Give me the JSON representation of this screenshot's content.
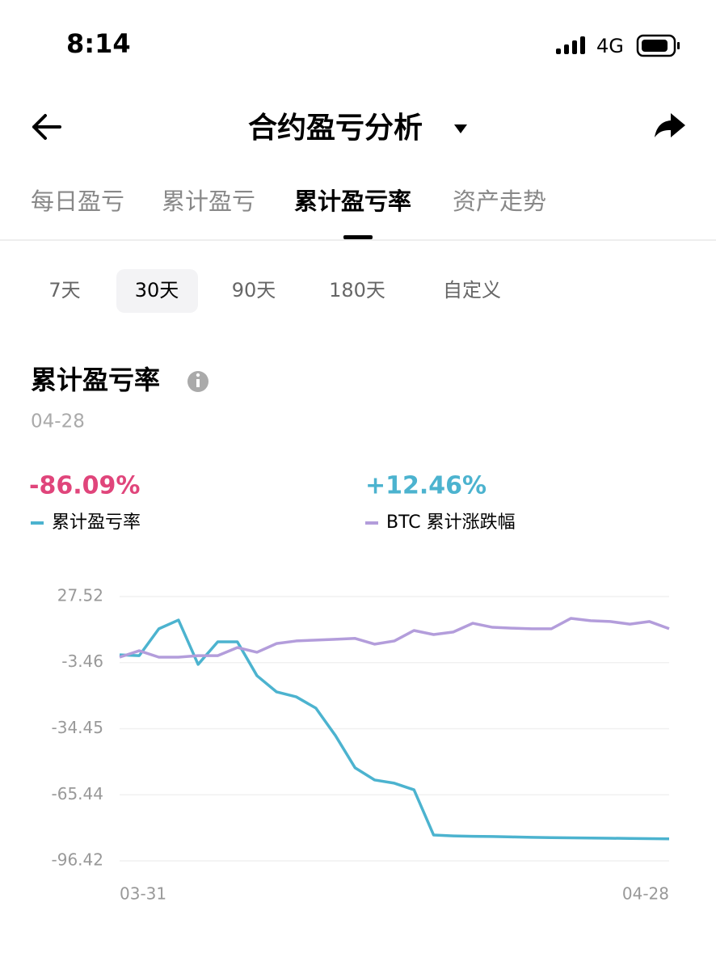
{
  "status_bar": {
    "time": "8:14",
    "network": "4G"
  },
  "header": {
    "title": "合约盈亏分析"
  },
  "tabs": [
    "每日盈亏",
    "累计盈亏",
    "累计盈亏率",
    "资产走势"
  ],
  "ranges": [
    "7天",
    "30天",
    "90天",
    "180天",
    "自定义"
  ],
  "section": {
    "title": "累计盈亏率",
    "date": "04-28"
  },
  "legend_values": [
    "-86.09%",
    "+12.46%"
  ],
  "chart_data": {
    "type": "line",
    "categories": [
      "03-31",
      null,
      null,
      null,
      null,
      null,
      null,
      null,
      null,
      null,
      null,
      null,
      null,
      null,
      null,
      null,
      null,
      null,
      null,
      null,
      null,
      null,
      null,
      null,
      null,
      null,
      null,
      null,
      "04-28"
    ],
    "series": [
      {
        "name": "累计盈亏率",
        "color": "#4cb3cf",
        "values": [
          0.2,
          -0.2,
          12.4,
          16.5,
          -4.3,
          6.3,
          6.3,
          -9.6,
          -17.2,
          -19.5,
          -24.8,
          -37.7,
          -52.8,
          -58.5,
          -60.0,
          -63.1,
          -84.3,
          -84.7,
          -84.9,
          -85.0,
          -85.2,
          -85.4,
          -85.5,
          -85.6,
          -85.7,
          -85.8,
          -85.9,
          -86.0,
          -86.09
        ]
      },
      {
        "name": "BTC 累计涨跌幅",
        "color": "#b39ddb",
        "values": [
          -0.9,
          2.1,
          -0.9,
          -0.9,
          -0.2,
          -0.2,
          3.6,
          1.4,
          5.5,
          6.7,
          7.1,
          7.5,
          7.9,
          5.2,
          6.7,
          11.6,
          9.7,
          10.9,
          15.0,
          13.1,
          12.7,
          12.4,
          12.4,
          17.3,
          16.2,
          15.8,
          14.6,
          15.8,
          12.46
        ]
      }
    ],
    "ylim": [
      -96.42,
      27.52
    ],
    "yticks": [
      27.52,
      -3.46,
      -34.45,
      -65.44,
      -96.42
    ],
    "grid": true
  }
}
